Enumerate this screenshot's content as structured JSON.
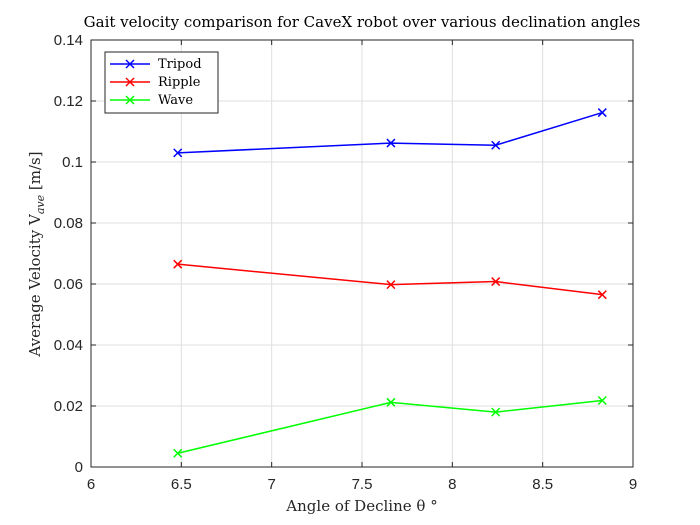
{
  "chart_data": {
    "type": "line",
    "title": "Gait velocity comparison for CaveX robot over various declination angles",
    "xlabel": "Angle of Decline θ °",
    "ylabel_main": "Average Velocity V",
    "ylabel_sub": "ave",
    "ylabel_unit": " [m/s]",
    "xlim": [
      6,
      9
    ],
    "ylim": [
      0,
      0.14
    ],
    "x_ticks": [
      6,
      6.5,
      7,
      7.5,
      8,
      8.5,
      9
    ],
    "x_tick_labels": [
      "6",
      "6.5",
      "7",
      "7.5",
      "8",
      "8.5",
      "9"
    ],
    "y_ticks": [
      0,
      0.02,
      0.04,
      0.06,
      0.08,
      0.1,
      0.12,
      0.14
    ],
    "y_tick_labels": [
      "0",
      "0.02",
      "0.04",
      "0.06",
      "0.08",
      "0.1",
      "0.12",
      "0.14"
    ],
    "grid": true,
    "legend_position": "top-left",
    "marker": "x",
    "x": [
      6.48,
      7.66,
      8.24,
      8.83
    ],
    "series": [
      {
        "name": "Tripod",
        "color": "#0000ff",
        "values": [
          0.103,
          0.1062,
          0.1055,
          0.1162
        ]
      },
      {
        "name": "Ripple",
        "color": "#ff0000",
        "values": [
          0.0665,
          0.0598,
          0.0608,
          0.0565
        ]
      },
      {
        "name": "Wave",
        "color": "#00ff00",
        "values": [
          0.0045,
          0.0212,
          0.018,
          0.0218
        ]
      }
    ]
  }
}
